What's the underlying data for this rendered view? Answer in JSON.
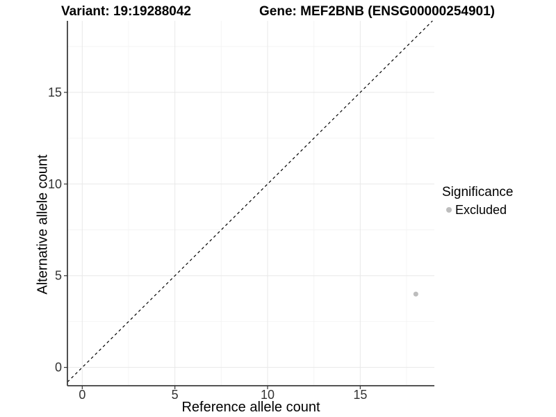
{
  "chart_data": {
    "type": "scatter",
    "title_left": "Variant: 19:19288042",
    "title_right": "Gene: MEF2BNB (ENSG00000254901)",
    "xlabel": "Reference allele count",
    "ylabel": "Alternative allele count",
    "xlim": [
      -0.8,
      19.0
    ],
    "ylim": [
      -1.0,
      18.9
    ],
    "xticks": [
      0,
      5,
      10,
      15
    ],
    "yticks": [
      0,
      5,
      10,
      15
    ],
    "minor_interval": 2.5,
    "grid": "major+minor",
    "legend_position": "right",
    "identity_line": {
      "slope": 1,
      "intercept": 0,
      "style": "dashed",
      "color": "#000000"
    },
    "series": [
      {
        "name": "Excluded",
        "color": "#bdbdbd",
        "points": [
          {
            "x": 18,
            "y": 4
          }
        ]
      }
    ],
    "legend": {
      "title": "Significance",
      "entries": [
        {
          "label": "Excluded",
          "color": "#bdbdbd"
        }
      ]
    }
  },
  "colors": {
    "background": "#ffffff",
    "axis_line": "#3c3c3c",
    "tick_mark": "#333333",
    "tick_label": "#333333",
    "grid_major": "#e8e8e8",
    "grid_minor": "#f4f4f4"
  }
}
